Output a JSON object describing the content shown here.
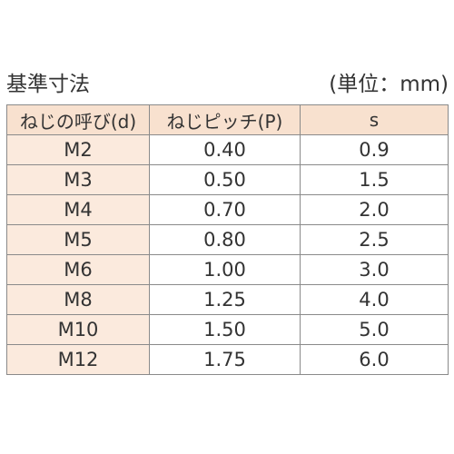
{
  "title": "基準寸法",
  "unit": "(単位：mm)",
  "table": {
    "headers": [
      "ねじの呼び(d)",
      "ねじピッチ(P)",
      "s"
    ],
    "rows": [
      [
        "M2",
        "0.40",
        "0.9"
      ],
      [
        "M3",
        "0.50",
        "1.5"
      ],
      [
        "M4",
        "0.70",
        "2.0"
      ],
      [
        "M5",
        "0.80",
        "2.5"
      ],
      [
        "M6",
        "1.00",
        "3.0"
      ],
      [
        "M8",
        "1.25",
        "4.0"
      ],
      [
        "M10",
        "1.50",
        "5.0"
      ],
      [
        "M12",
        "1.75",
        "6.0"
      ]
    ]
  },
  "colors": {
    "header_bg": "#f8e1cf",
    "first_col_bg": "#fbeadd",
    "border": "#8a8a8a",
    "text": "#333333"
  }
}
